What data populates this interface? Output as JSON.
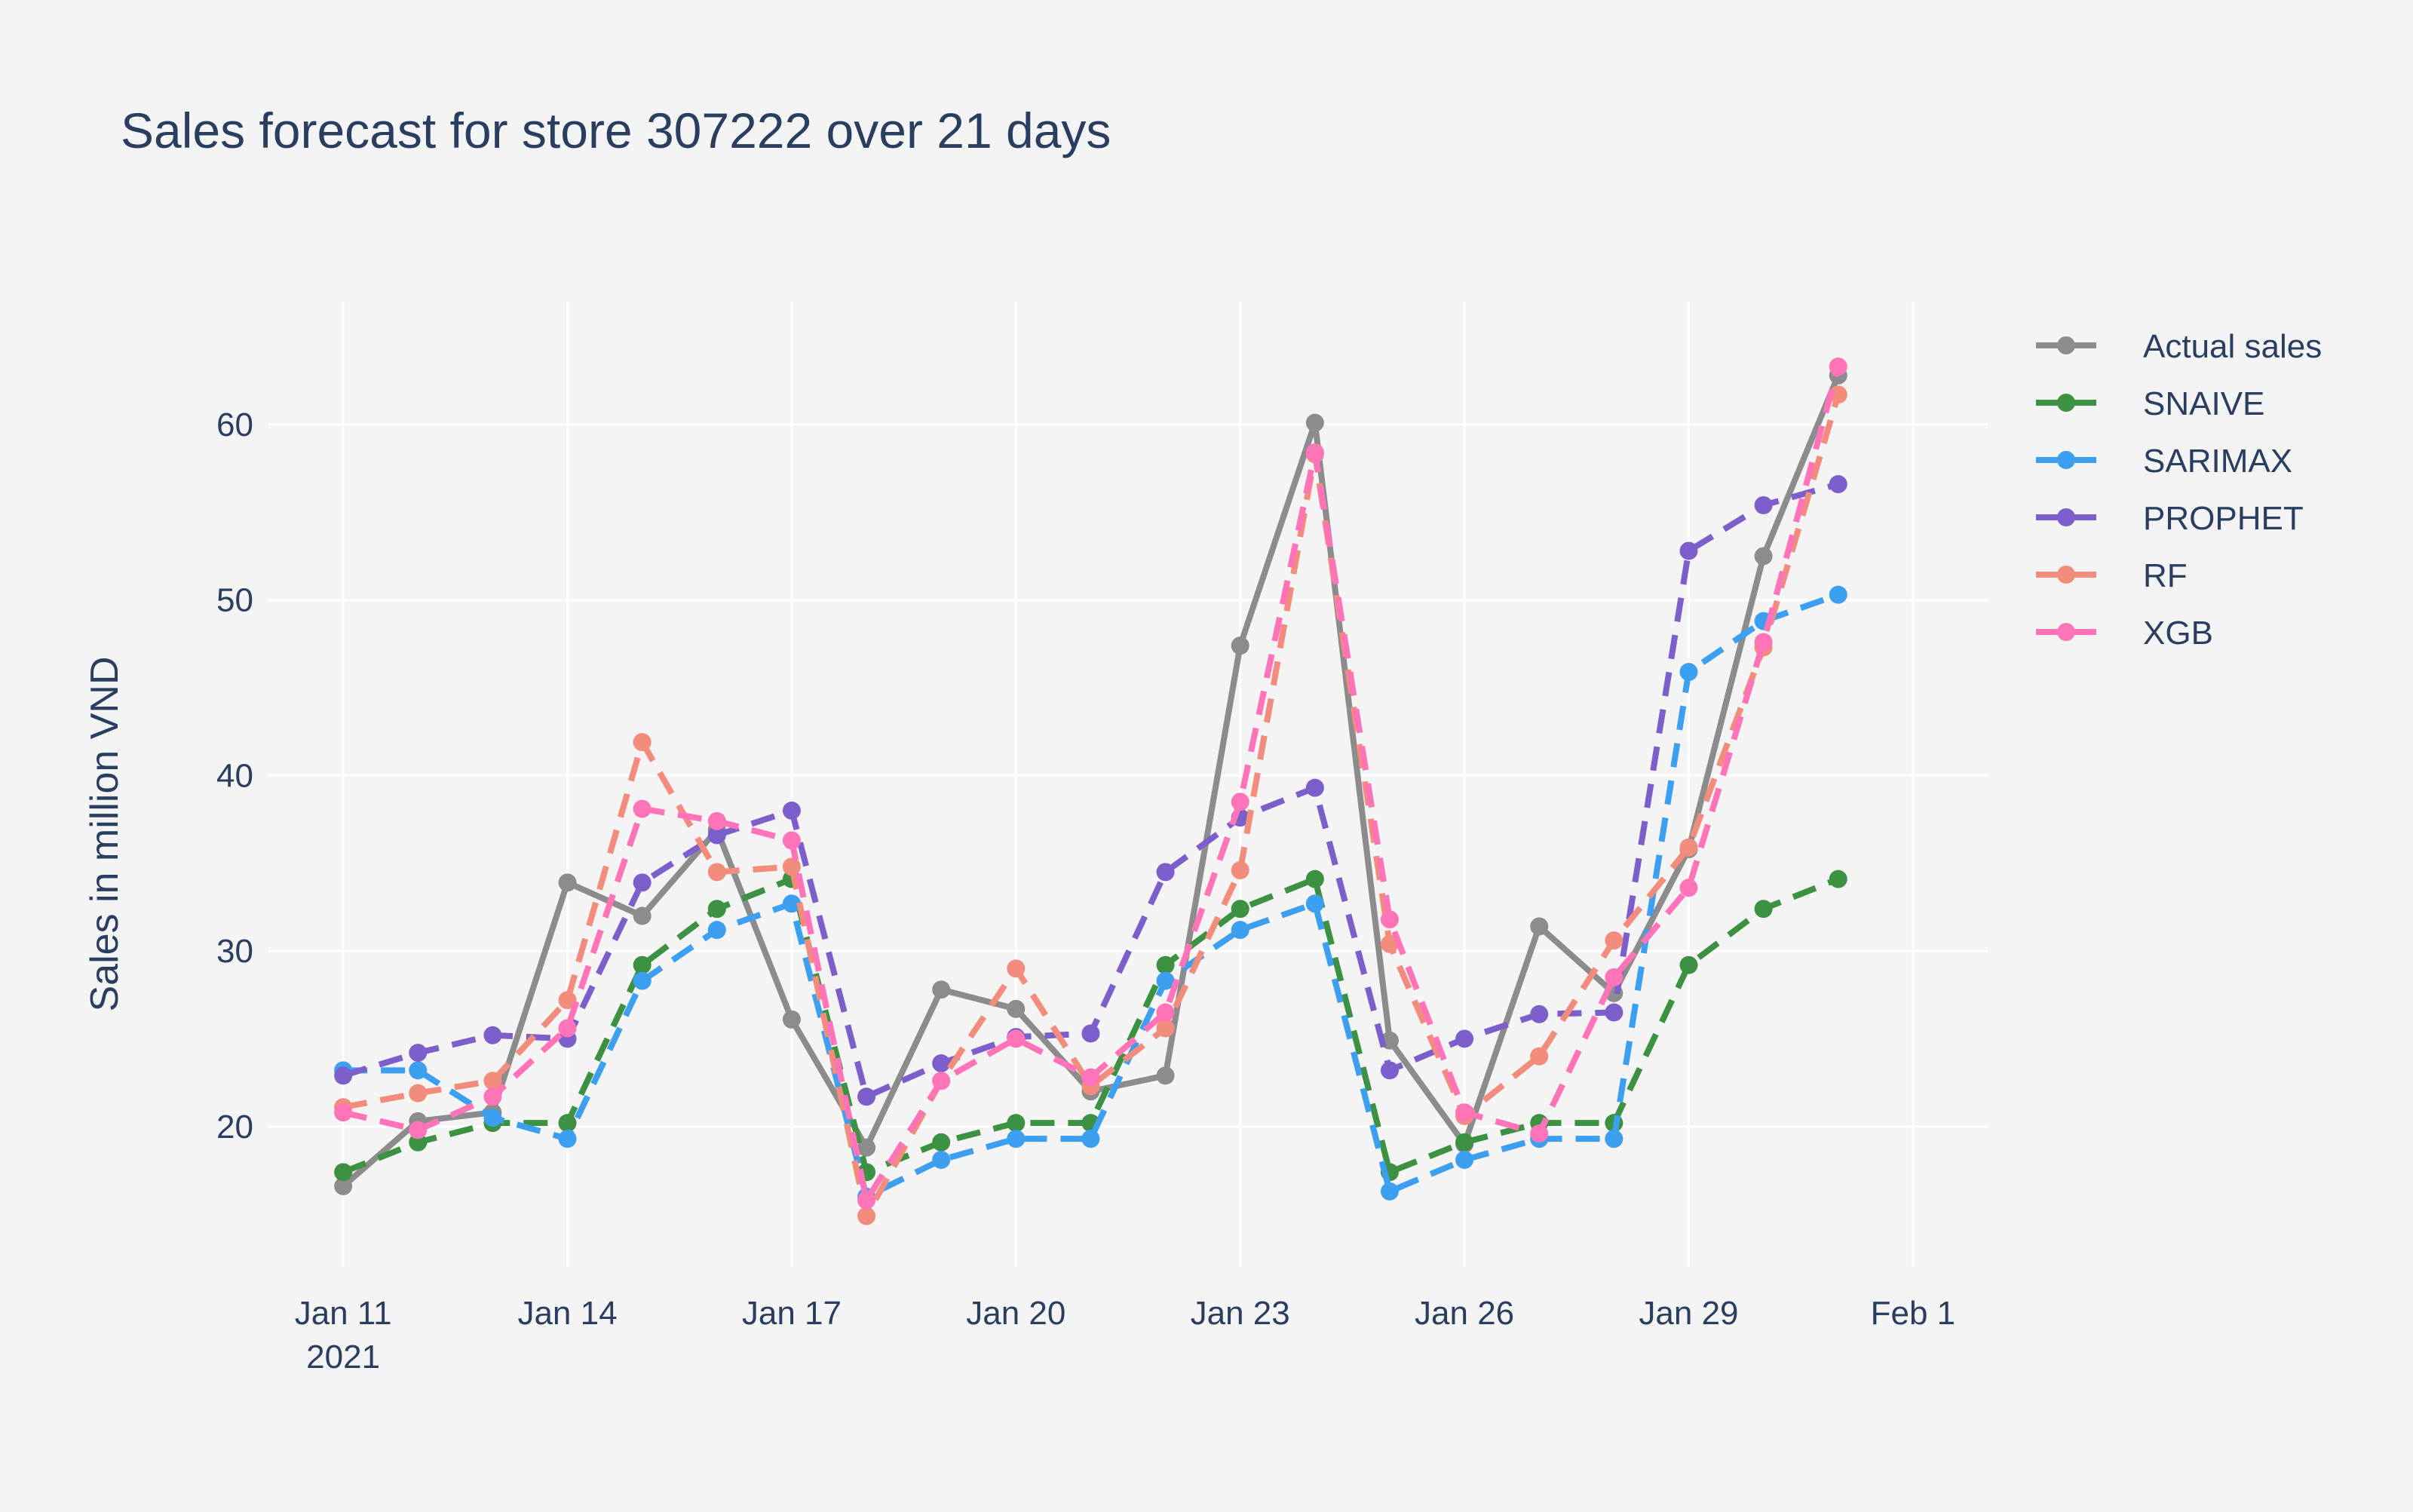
{
  "chart_data": {
    "type": "line",
    "title": "Sales forecast for store 307222 over 21 days",
    "xlabel": "",
    "ylabel": "Sales in million VND",
    "x": [
      "2021-01-11",
      "2021-01-12",
      "2021-01-13",
      "2021-01-14",
      "2021-01-15",
      "2021-01-16",
      "2021-01-17",
      "2021-01-18",
      "2021-01-19",
      "2021-01-20",
      "2021-01-21",
      "2021-01-22",
      "2021-01-23",
      "2021-01-24",
      "2021-01-25",
      "2021-01-26",
      "2021-01-27",
      "2021-01-28",
      "2021-01-29",
      "2021-01-30",
      "2021-01-31"
    ],
    "x_ticks": [
      {
        "date": "2021-01-11",
        "label": "Jan 11",
        "sublabel": "2021"
      },
      {
        "date": "2021-01-14",
        "label": "Jan 14"
      },
      {
        "date": "2021-01-17",
        "label": "Jan 17"
      },
      {
        "date": "2021-01-20",
        "label": "Jan 20"
      },
      {
        "date": "2021-01-23",
        "label": "Jan 23"
      },
      {
        "date": "2021-01-26",
        "label": "Jan 26"
      },
      {
        "date": "2021-01-29",
        "label": "Jan 29"
      },
      {
        "date": "2021-02-01",
        "label": "Feb 1"
      }
    ],
    "xlim": [
      "2021-01-10",
      "2021-02-02"
    ],
    "ylim": [
      12,
      67
    ],
    "y_ticks": [
      20,
      30,
      40,
      50,
      60
    ],
    "grid": true,
    "legend_position": "top-right",
    "series": [
      {
        "name": "Actual sales",
        "color": "#8c8c8c",
        "dash": "solid",
        "values": [
          16.6,
          20.3,
          20.8,
          33.9,
          32.0,
          36.9,
          26.1,
          18.8,
          27.8,
          26.7,
          22.0,
          22.9,
          47.4,
          60.1,
          24.9,
          19.0,
          31.4,
          27.6,
          35.8,
          52.5,
          62.8
        ]
      },
      {
        "name": "SNAIVE",
        "color": "#3d9142",
        "dash": "dash",
        "values": [
          17.4,
          19.1,
          20.2,
          20.2,
          29.2,
          32.4,
          34.1,
          17.4,
          19.1,
          20.2,
          20.2,
          29.2,
          32.4,
          34.1,
          17.4,
          19.1,
          20.2,
          20.2,
          29.2,
          32.4,
          34.1
        ]
      },
      {
        "name": "SARIMAX",
        "color": "#3d9ff0",
        "dash": "dash",
        "values": [
          23.2,
          23.2,
          20.5,
          19.3,
          28.3,
          31.2,
          32.7,
          16.0,
          18.1,
          19.3,
          19.3,
          28.3,
          31.2,
          32.7,
          16.3,
          18.1,
          19.3,
          19.3,
          45.9,
          48.8,
          50.3
        ]
      },
      {
        "name": "PROPHET",
        "color": "#7d5fcc",
        "dash": "dash",
        "values": [
          22.9,
          24.2,
          25.2,
          25.0,
          33.9,
          36.6,
          38.0,
          21.7,
          23.6,
          25.1,
          25.3,
          34.5,
          37.6,
          39.3,
          23.2,
          25.0,
          26.4,
          26.5,
          52.8,
          55.4,
          56.6
        ]
      },
      {
        "name": "RF",
        "color": "#f28c7c",
        "dash": "dash",
        "values": [
          21.1,
          21.9,
          22.6,
          27.2,
          41.9,
          34.5,
          34.8,
          14.9,
          22.6,
          29.0,
          22.3,
          25.6,
          34.6,
          58.3,
          30.4,
          20.6,
          24.0,
          30.6,
          35.9,
          47.3,
          61.7
        ]
      },
      {
        "name": "XGB",
        "color": "#ff73b8",
        "dash": "dash",
        "values": [
          20.8,
          19.8,
          21.7,
          25.6,
          38.1,
          37.4,
          36.3,
          15.8,
          22.6,
          25.0,
          22.8,
          26.5,
          38.5,
          58.4,
          31.8,
          20.8,
          19.6,
          28.5,
          33.6,
          47.6,
          63.3
        ]
      }
    ]
  }
}
